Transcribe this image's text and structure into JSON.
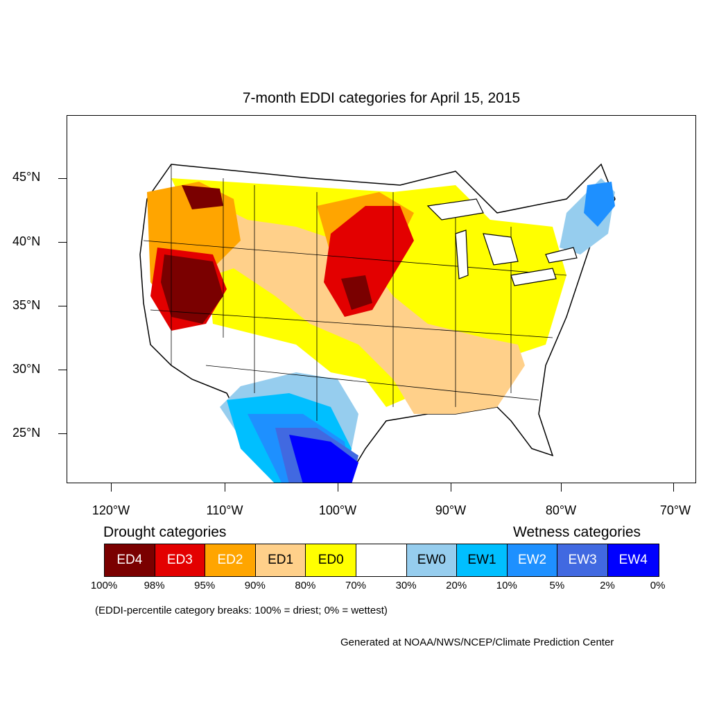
{
  "title": "7-month EDDI categories for April 15, 2015",
  "axes": {
    "lat_labels": [
      "45°N",
      "40°N",
      "35°N",
      "30°N",
      "25°N"
    ],
    "lon_labels": [
      "120°W",
      "110°W",
      "100°W",
      "90°W",
      "80°W",
      "70°W"
    ]
  },
  "legend": {
    "drought_heading": "Drought categories",
    "wetness_heading": "Wetness categories",
    "categories": [
      {
        "label": "ED4",
        "color": "#7a0000",
        "text_color": "#ffffff"
      },
      {
        "label": "ED3",
        "color": "#e30000",
        "text_color": "#ffffff"
      },
      {
        "label": "ED2",
        "color": "#ffa500",
        "text_color": "#ffffff"
      },
      {
        "label": "ED1",
        "color": "#ffd08a",
        "text_color": "#000000"
      },
      {
        "label": "ED0",
        "color": "#ffff00",
        "text_color": "#000000"
      },
      {
        "label": "",
        "color": "#ffffff",
        "text_color": "#000000"
      },
      {
        "label": "EW0",
        "color": "#96cdee",
        "text_color": "#000000"
      },
      {
        "label": "EW1",
        "color": "#00bfff",
        "text_color": "#000000"
      },
      {
        "label": "EW2",
        "color": "#1e90ff",
        "text_color": "#ffffff"
      },
      {
        "label": "EW3",
        "color": "#4169e1",
        "text_color": "#ffffff"
      },
      {
        "label": "EW4",
        "color": "#0000ff",
        "text_color": "#ffffff"
      }
    ],
    "percentiles": [
      "100%",
      "98%",
      "95%",
      "90%",
      "80%",
      "70%",
      "30%",
      "20%",
      "10%",
      "5%",
      "2%",
      "0%"
    ]
  },
  "footnote": "(EDDI-percentile category breaks: 100% = driest; 0% = wettest)",
  "credit": "Generated at NOAA/NWS/NCEP/Climate Prediction Center"
}
